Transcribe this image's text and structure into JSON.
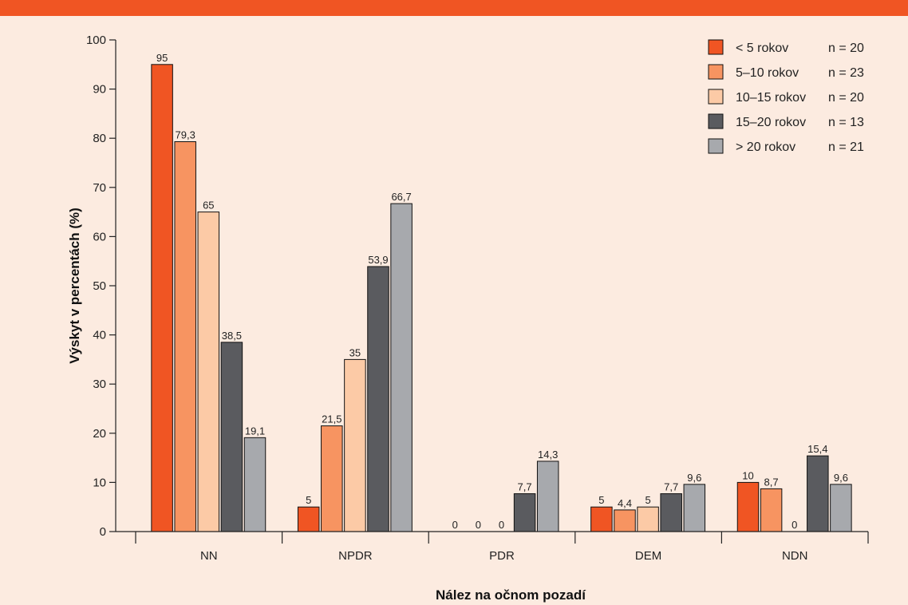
{
  "chart_data": {
    "type": "bar",
    "title": "",
    "xlabel": "Nález na očnom pozadí",
    "ylabel": "Výskyt v percentách (%)",
    "ylim": [
      0,
      100
    ],
    "yticks": [
      "0",
      "10",
      "20",
      "30",
      "40",
      "50",
      "60",
      "70",
      "80",
      "90",
      "100"
    ],
    "categories": [
      "NN",
      "NPDR",
      "PDR",
      "DEM",
      "NDN"
    ],
    "grid": false,
    "legend_position": "top-right",
    "series": [
      {
        "name": "< 5 rokov",
        "n": "n = 20",
        "color": "#f05523",
        "values": [
          95,
          5,
          0,
          5,
          10
        ],
        "labels": [
          "95",
          "5",
          "0",
          "5",
          "10"
        ]
      },
      {
        "name": "5–10 rokov",
        "n": "n = 23",
        "color": "#f79461",
        "values": [
          79.3,
          21.5,
          0,
          4.4,
          8.7
        ],
        "labels": [
          "79,3",
          "21,5",
          "0",
          "4,4",
          "8,7"
        ]
      },
      {
        "name": "10–15 rokov",
        "n": "n = 20",
        "color": "#fccaa6",
        "values": [
          65,
          35,
          0,
          5,
          0
        ],
        "labels": [
          "65",
          "35",
          "0",
          "5",
          "0"
        ]
      },
      {
        "name": "15–20 rokov",
        "n": "n = 13",
        "color": "#5a5b5f",
        "values": [
          38.5,
          53.9,
          7.7,
          7.7,
          15.4
        ],
        "labels": [
          "38,5",
          "53,9",
          "7,7",
          "7,7",
          "15,4"
        ]
      },
      {
        "name": "> 20 rokov",
        "n": "n = 21",
        "color": "#a7a9ad",
        "values": [
          19.1,
          66.7,
          14.3,
          9.6,
          9.6
        ],
        "labels": [
          "19,1",
          "66,7",
          "14,3",
          "9,6",
          "9,6"
        ]
      }
    ]
  }
}
